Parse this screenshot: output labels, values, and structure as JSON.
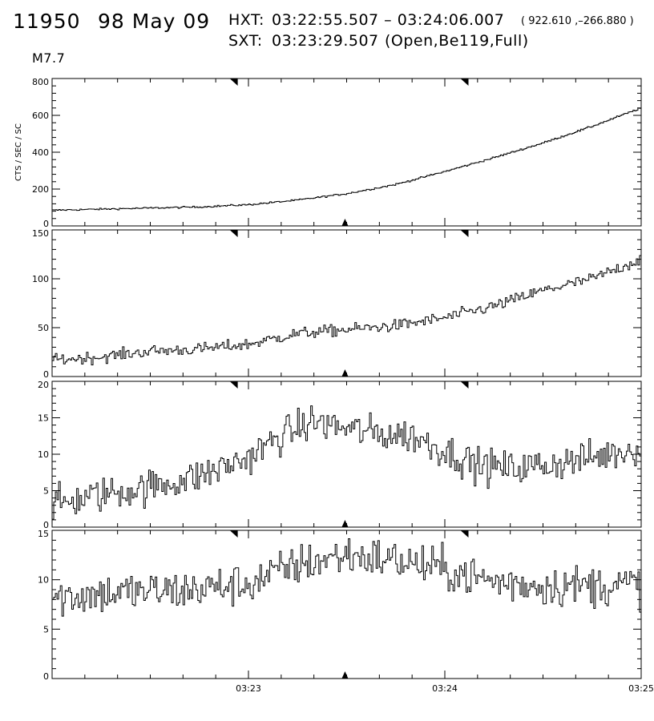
{
  "header": {
    "event_id": "11950",
    "date": "98 May 09",
    "hxt_label": "HXT:",
    "hxt_range": "03:22:55.507 – 03:24:06.007",
    "position": "( 922.610 ,–266.880 )",
    "sxt_label": "SXT:",
    "sxt_time": "03:23:29.507",
    "sxt_config": "(Open,Be119,Full)",
    "flare_class": "M7.7"
  },
  "colors": {
    "line": "#000000",
    "background": "#ffffff"
  },
  "chart_data": [
    {
      "type": "line",
      "style": "step",
      "ylabel": "CTS / SEC / SC",
      "ylim": [
        0,
        800
      ],
      "yticks": [
        0,
        200,
        400,
        600,
        800
      ],
      "xlim": [
        "03:22:00",
        "03:25:00"
      ],
      "xticklabels": [],
      "hxt_markers": [
        "03:22:55.5",
        "03:24:06.0"
      ],
      "sxt_marker": "03:23:29.5",
      "x": [
        "03:22:00",
        "03:22:30",
        "03:22:45",
        "03:23:00",
        "03:23:15",
        "03:23:30",
        "03:23:45",
        "03:24:00",
        "03:24:15",
        "03:24:30",
        "03:24:45",
        "03:25:00"
      ],
      "values": [
        85,
        97,
        103,
        115,
        140,
        175,
        225,
        295,
        370,
        450,
        540,
        640
      ]
    },
    {
      "type": "line",
      "style": "step",
      "ylabel": "",
      "ylim": [
        0,
        150
      ],
      "yticks": [
        0,
        50,
        100,
        150
      ],
      "xlim": [
        "03:22:00",
        "03:25:00"
      ],
      "xticklabels": [],
      "hxt_markers": [
        "03:22:55.5",
        "03:24:06.0"
      ],
      "sxt_marker": "03:23:29.5",
      "x": [
        "03:22:00",
        "03:22:15",
        "03:22:30",
        "03:22:45",
        "03:23:00",
        "03:23:15",
        "03:23:30",
        "03:23:45",
        "03:24:00",
        "03:24:15",
        "03:24:30",
        "03:24:45",
        "03:25:00"
      ],
      "values": [
        17,
        20,
        26,
        28,
        33,
        44,
        48,
        52,
        60,
        72,
        88,
        100,
        120
      ]
    },
    {
      "type": "line",
      "style": "step",
      "ylabel": "",
      "ylim": [
        0,
        20
      ],
      "yticks": [
        0,
        5,
        10,
        15,
        20
      ],
      "xlim": [
        "03:22:00",
        "03:25:00"
      ],
      "xticklabels": [],
      "hxt_markers": [
        "03:22:55.5",
        "03:24:06.0"
      ],
      "sxt_marker": "03:23:29.5",
      "x": [
        "03:22:00",
        "03:22:15",
        "03:22:30",
        "03:22:45",
        "03:23:00",
        "03:23:10",
        "03:23:20",
        "03:23:30",
        "03:23:40",
        "03:23:50",
        "03:24:00",
        "03:24:10",
        "03:24:20",
        "03:24:30",
        "03:24:45",
        "03:25:00"
      ],
      "values": [
        3.0,
        4.5,
        5.5,
        7.0,
        9.5,
        12.5,
        14.5,
        13.5,
        12.8,
        12.5,
        10.5,
        8.5,
        8.0,
        8.5,
        9.5,
        11.0
      ]
    },
    {
      "type": "line",
      "style": "step",
      "ylabel": "",
      "ylim": [
        0,
        15
      ],
      "yticks": [
        0,
        5,
        10,
        15
      ],
      "xlim": [
        "03:22:00",
        "03:25:00"
      ],
      "xticklabels": [
        "03:23",
        "03:24",
        "03:25"
      ],
      "hxt_markers": [
        "03:22:55.5",
        "03:24:06.0"
      ],
      "sxt_marker": "03:23:29.5",
      "x": [
        "03:22:00",
        "03:22:20",
        "03:22:40",
        "03:23:00",
        "03:23:15",
        "03:23:30",
        "03:23:45",
        "03:24:00",
        "03:24:15",
        "03:24:30",
        "03:24:45",
        "03:25:00"
      ],
      "values": [
        8.2,
        8.7,
        8.9,
        9.6,
        11.5,
        12.5,
        12.0,
        11.0,
        9.8,
        9.4,
        9.4,
        9.5
      ]
    }
  ]
}
